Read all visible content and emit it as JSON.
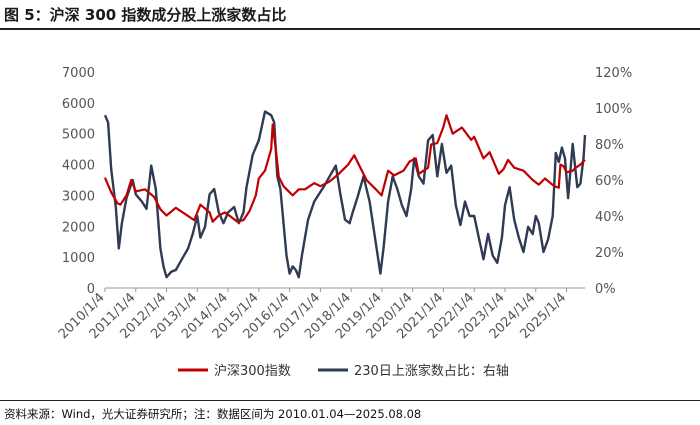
{
  "figure": {
    "title": "图 5：沪深 300 指数成分股上涨家数占比",
    "source": "资料来源：Wind，光大证券研究所；注：数据区间为 2010.01.04—2025.08.08"
  },
  "colors": {
    "index_line": "#c00000",
    "ratio_line": "#2f3b52"
  },
  "chart_data": {
    "type": "line",
    "x_tick_labels": [
      "2010/1/4",
      "2011/1/4",
      "2012/1/4",
      "2013/1/4",
      "2014/1/4",
      "2015/1/4",
      "2016/1/4",
      "2017/1/4",
      "2018/1/4",
      "2019/1/4",
      "2020/1/4",
      "2021/1/4",
      "2022/1/4",
      "2023/1/4",
      "2024/1/4",
      "2025/1/4"
    ],
    "x_range": [
      2010.0,
      2025.6
    ],
    "y_left": {
      "min": 0,
      "max": 7000,
      "ticks": [
        "0",
        "1000",
        "2000",
        "3000",
        "4000",
        "5000",
        "6000",
        "7000"
      ]
    },
    "y_right": {
      "min": 0,
      "max": 1.2,
      "ticks": [
        "0%",
        "20%",
        "40%",
        "60%",
        "80%",
        "100%",
        "120%"
      ]
    },
    "legend_position": "bottom",
    "grid": false,
    "series": [
      {
        "name": "沪深300指数",
        "axis": "left",
        "x": [
          2010.0,
          2010.2,
          2010.4,
          2010.5,
          2010.7,
          2010.85,
          2011.0,
          2011.3,
          2011.6,
          2011.8,
          2012.0,
          2012.3,
          2012.6,
          2012.9,
          2013.1,
          2013.4,
          2013.5,
          2013.7,
          2013.9,
          2014.1,
          2014.3,
          2014.5,
          2014.7,
          2014.9,
          2015.0,
          2015.2,
          2015.4,
          2015.45,
          2015.55,
          2015.65,
          2015.8,
          2016.0,
          2016.1,
          2016.3,
          2016.5,
          2016.8,
          2017.0,
          2017.3,
          2017.6,
          2017.9,
          2018.1,
          2018.3,
          2018.5,
          2018.8,
          2018.99,
          2019.2,
          2019.4,
          2019.7,
          2019.9,
          2020.1,
          2020.2,
          2020.5,
          2020.6,
          2020.8,
          2020.99,
          2021.1,
          2021.3,
          2021.6,
          2021.9,
          2022.0,
          2022.3,
          2022.5,
          2022.8,
          2022.95,
          2023.1,
          2023.3,
          2023.6,
          2023.9,
          2024.1,
          2024.3,
          2024.6,
          2024.75,
          2024.8,
          2024.9,
          2025.0,
          2025.2,
          2025.3,
          2025.45,
          2025.6
        ],
        "y": [
          3575,
          3100,
          2750,
          2700,
          3000,
          3500,
          3130,
          3200,
          2950,
          2550,
          2350,
          2600,
          2400,
          2200,
          2700,
          2450,
          2150,
          2350,
          2450,
          2300,
          2150,
          2200,
          2500,
          3000,
          3550,
          3800,
          4500,
          5300,
          4500,
          3600,
          3300,
          3100,
          3000,
          3200,
          3200,
          3400,
          3300,
          3450,
          3700,
          4000,
          4300,
          3900,
          3500,
          3200,
          3000,
          3800,
          3650,
          3800,
          4100,
          4200,
          3700,
          3900,
          4650,
          4700,
          5200,
          5600,
          5000,
          5200,
          4800,
          4900,
          4200,
          4400,
          3700,
          3850,
          4150,
          3900,
          3800,
          3500,
          3350,
          3550,
          3300,
          3250,
          4000,
          3950,
          3750,
          3800,
          3900,
          4000,
          4150
        ]
      },
      {
        "name": "230日上涨家数占比：右轴",
        "axis": "right",
        "x": [
          2010.0,
          2010.1,
          2010.2,
          2010.35,
          2010.45,
          2010.55,
          2010.7,
          2010.9,
          2011.0,
          2011.2,
          2011.35,
          2011.5,
          2011.65,
          2011.8,
          2011.9,
          2012.0,
          2012.15,
          2012.3,
          2012.5,
          2012.7,
          2012.85,
          2013.0,
          2013.1,
          2013.25,
          2013.4,
          2013.55,
          2013.7,
          2013.85,
          2014.0,
          2014.2,
          2014.35,
          2014.5,
          2014.6,
          2014.8,
          2015.0,
          2015.2,
          2015.4,
          2015.5,
          2015.6,
          2015.7,
          2015.9,
          2016.0,
          2016.1,
          2016.2,
          2016.3,
          2016.4,
          2016.6,
          2016.8,
          2016.95,
          2017.1,
          2017.3,
          2017.5,
          2017.65,
          2017.8,
          2017.95,
          2018.05,
          2018.2,
          2018.4,
          2018.6,
          2018.8,
          2018.95,
          2019.05,
          2019.2,
          2019.35,
          2019.5,
          2019.65,
          2019.8,
          2019.95,
          2020.05,
          2020.2,
          2020.35,
          2020.5,
          2020.65,
          2020.8,
          2020.95,
          2021.1,
          2021.25,
          2021.4,
          2021.55,
          2021.7,
          2021.85,
          2022.0,
          2022.15,
          2022.3,
          2022.45,
          2022.6,
          2022.75,
          2022.9,
          2023.0,
          2023.15,
          2023.3,
          2023.45,
          2023.6,
          2023.75,
          2023.9,
          2024.0,
          2024.1,
          2024.25,
          2024.4,
          2024.55,
          2024.65,
          2024.75,
          2024.85,
          2024.95,
          2025.05,
          2025.2,
          2025.35,
          2025.45,
          2025.55,
          2025.6
        ],
        "y": [
          0.96,
          0.92,
          0.66,
          0.45,
          0.22,
          0.36,
          0.5,
          0.6,
          0.52,
          0.48,
          0.44,
          0.68,
          0.55,
          0.22,
          0.12,
          0.06,
          0.09,
          0.1,
          0.16,
          0.22,
          0.3,
          0.4,
          0.28,
          0.34,
          0.52,
          0.55,
          0.42,
          0.36,
          0.42,
          0.45,
          0.36,
          0.42,
          0.56,
          0.74,
          0.82,
          0.98,
          0.96,
          0.92,
          0.62,
          0.55,
          0.18,
          0.08,
          0.12,
          0.1,
          0.06,
          0.18,
          0.38,
          0.48,
          0.52,
          0.56,
          0.62,
          0.68,
          0.52,
          0.38,
          0.36,
          0.42,
          0.5,
          0.62,
          0.48,
          0.25,
          0.08,
          0.22,
          0.48,
          0.62,
          0.55,
          0.46,
          0.4,
          0.55,
          0.72,
          0.62,
          0.58,
          0.82,
          0.85,
          0.62,
          0.8,
          0.64,
          0.68,
          0.46,
          0.35,
          0.48,
          0.4,
          0.4,
          0.28,
          0.16,
          0.3,
          0.18,
          0.14,
          0.28,
          0.46,
          0.56,
          0.38,
          0.28,
          0.2,
          0.34,
          0.3,
          0.4,
          0.36,
          0.2,
          0.27,
          0.4,
          0.75,
          0.7,
          0.78,
          0.72,
          0.5,
          0.8,
          0.56,
          0.58,
          0.72,
          0.85
        ]
      }
    ]
  }
}
